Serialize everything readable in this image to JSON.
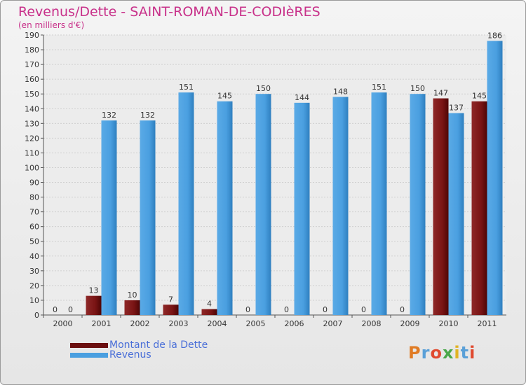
{
  "header": {
    "title": "Revenus/Dette - SAINT-ROMAN-DE-CODIèRES",
    "subtitle": "(en milliers d'€)"
  },
  "logo": {
    "text": "Proxiti",
    "colors": [
      "#e07b24",
      "#5aa0d8",
      "#e04a2f",
      "#4aa84a",
      "#e0b324",
      "#5aa0d8",
      "#e04a2f"
    ]
  },
  "chart_data": {
    "type": "bar",
    "categories": [
      "2000",
      "2001",
      "2002",
      "2003",
      "2004",
      "2005",
      "2006",
      "2007",
      "2008",
      "2009",
      "2010",
      "2011"
    ],
    "series": [
      {
        "name": "Montant de la Dette",
        "color": "#7a1414",
        "values": [
          0,
          13,
          10,
          7,
          4,
          0,
          0,
          0,
          0,
          0,
          147,
          145
        ]
      },
      {
        "name": "Revenus",
        "color": "#4a9fe0",
        "values": [
          0,
          132,
          132,
          151,
          145,
          150,
          144,
          148,
          151,
          150,
          137,
          186
        ]
      }
    ],
    "ylim": [
      0,
      190
    ],
    "yticks": [
      0,
      10,
      20,
      30,
      40,
      50,
      60,
      70,
      80,
      90,
      100,
      110,
      120,
      130,
      140,
      150,
      160,
      170,
      180,
      190
    ],
    "grid": true,
    "legend": "bottom-left"
  }
}
